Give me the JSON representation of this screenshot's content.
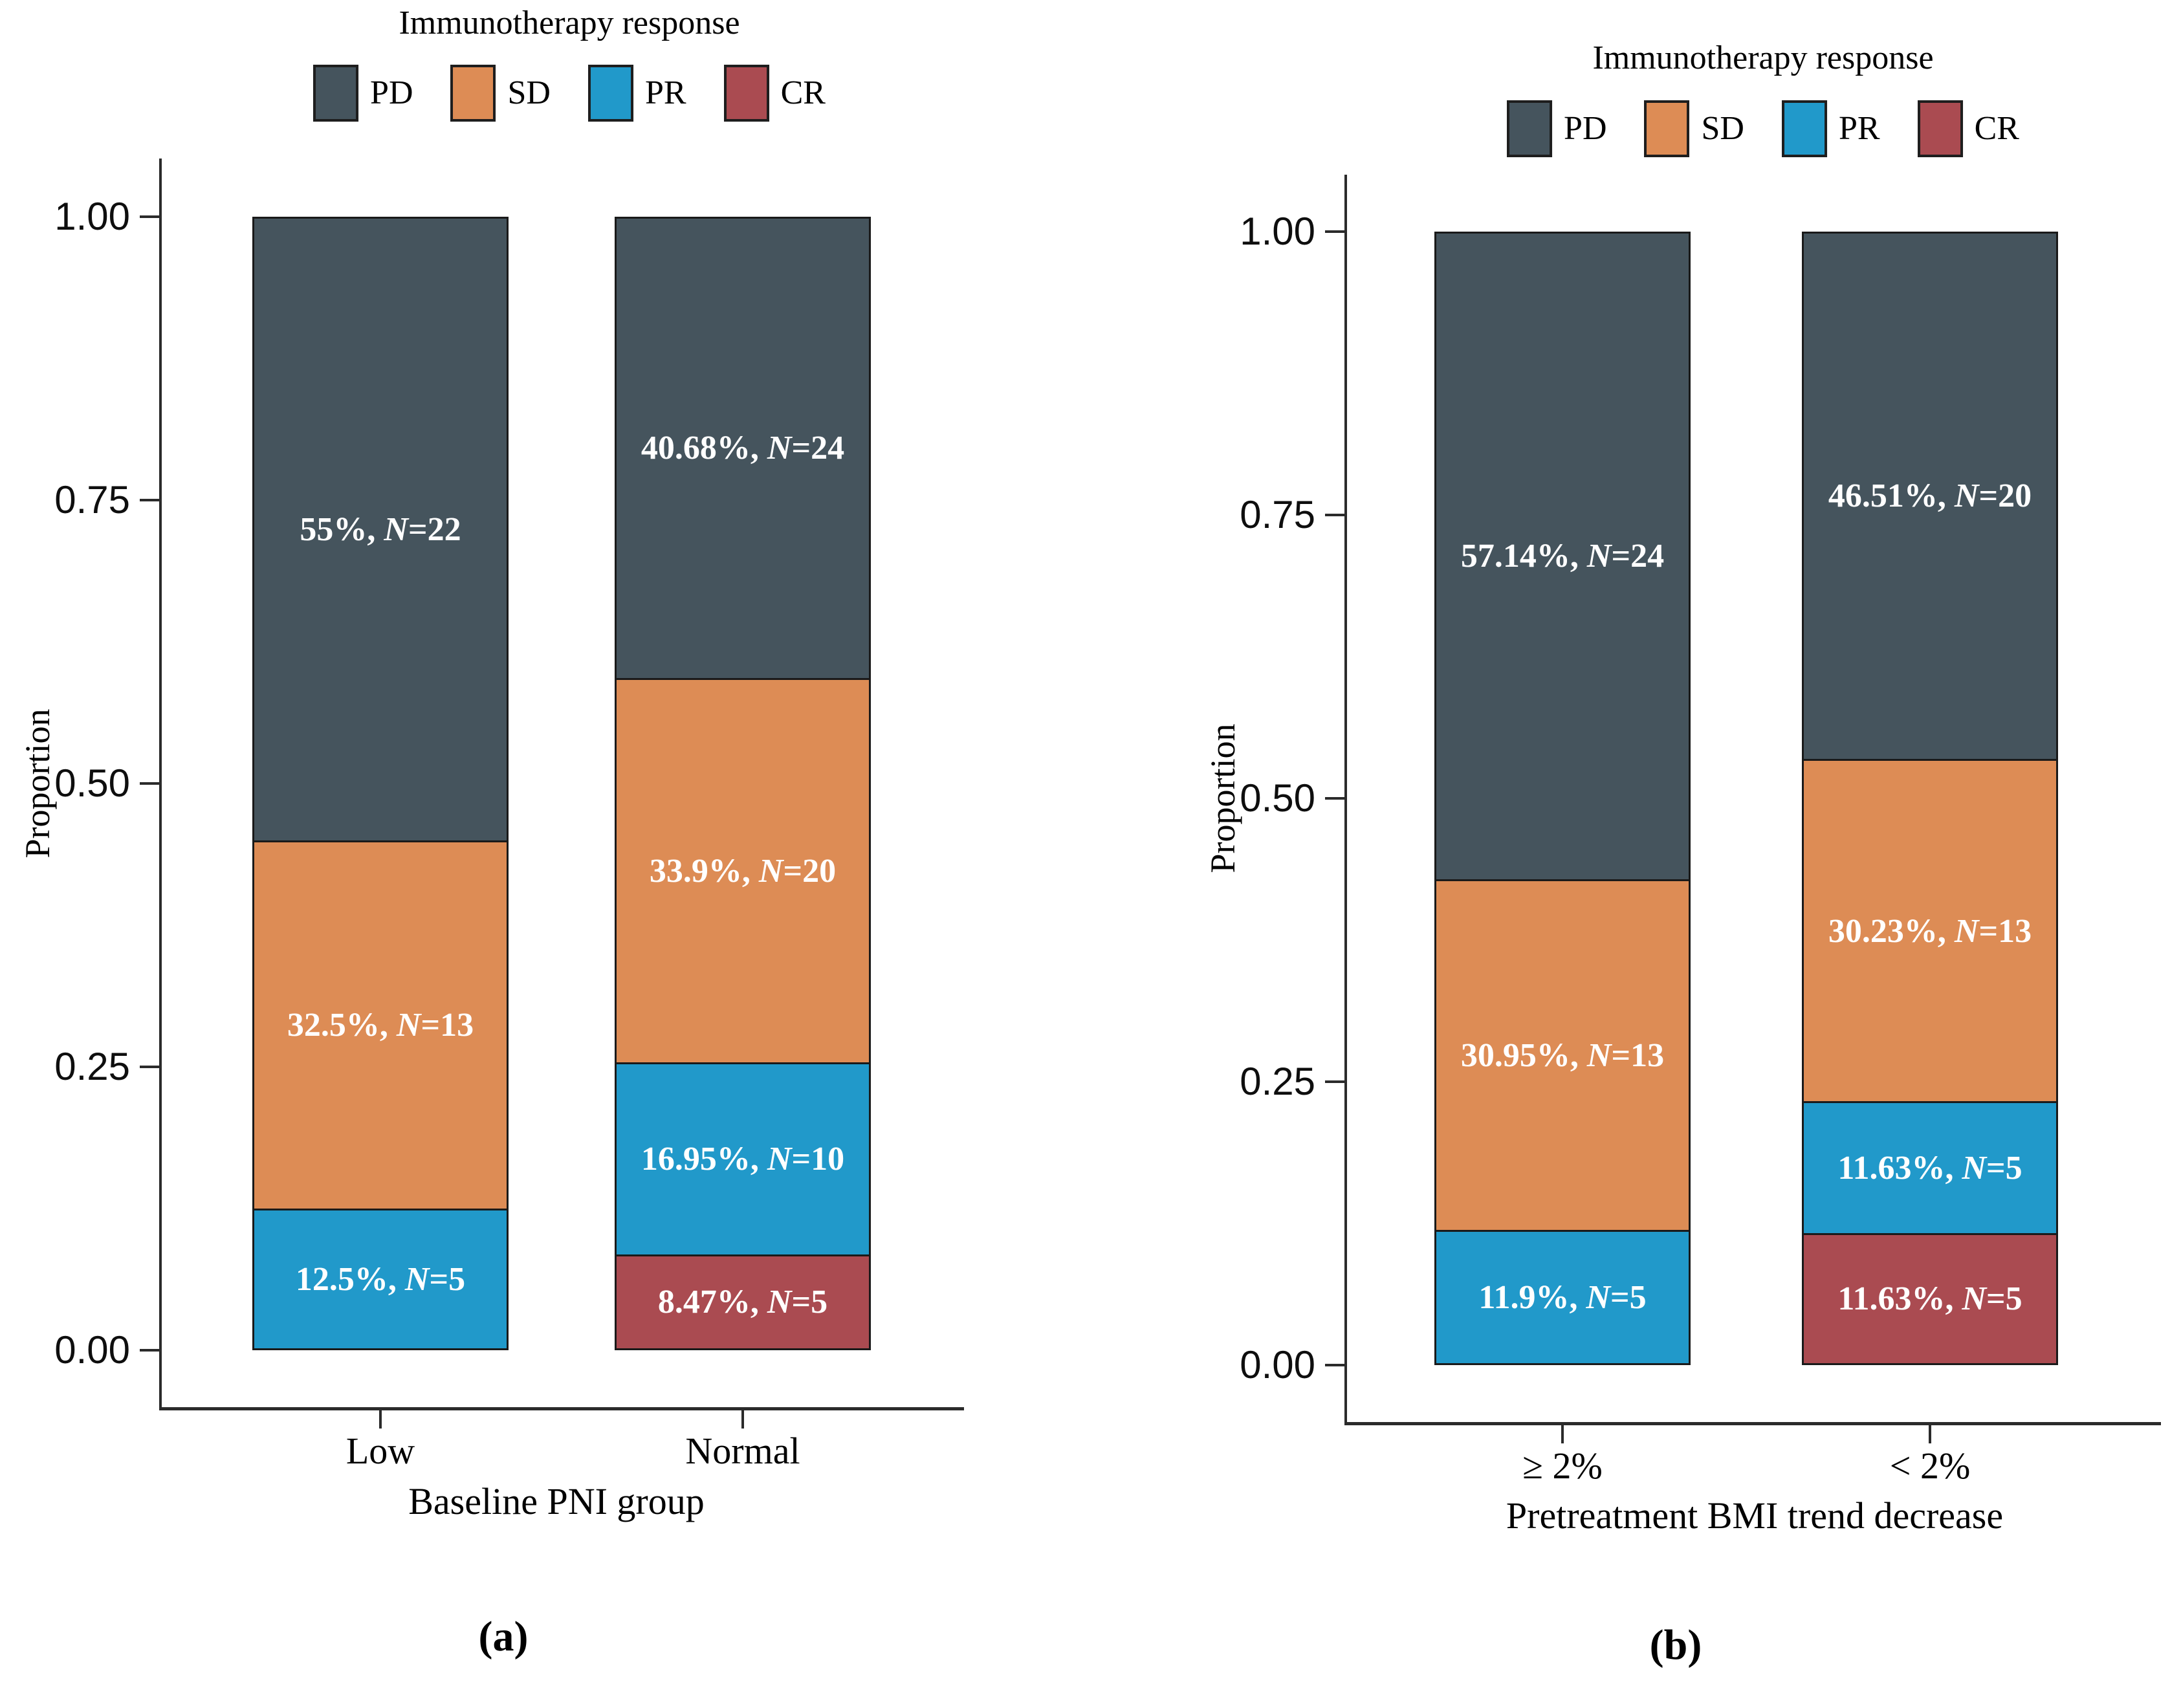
{
  "figure": {
    "legend_title": "Immunotherapy response",
    "y_tick_labels": [
      "1.00",
      "0.75",
      "0.50",
      "0.25",
      "0.00"
    ],
    "y_tick_values": [
      1.0,
      0.75,
      0.5,
      0.25,
      0.0
    ]
  },
  "colors": {
    "PD": "#45545d",
    "SD": "#dd8c55",
    "PR": "#2199ca",
    "CR": "#aa4b51",
    "axis": "#2b2b2b",
    "bar_border": "#1a1a1a",
    "bar_label_text": "#ffffff",
    "text": "#000000"
  },
  "chart_data": [
    {
      "type": "bar",
      "stacked": true,
      "panel": "a",
      "caption": "(a)",
      "legend_title": "Immunotherapy response",
      "legend_position": "top",
      "xlabel": "Baseline PNI group",
      "ylabel": "Proportion",
      "ylim": [
        0,
        1
      ],
      "yticks": [
        "1.00",
        "0.75",
        "0.50",
        "0.25",
        "0.00"
      ],
      "grid": false,
      "categories": [
        "Low",
        "Normal"
      ],
      "series": [
        {
          "name": "PD",
          "color_key": "PD",
          "values": [
            0.55,
            0.4068
          ],
          "counts": [
            22,
            24
          ],
          "labels": [
            "55%, N=22",
            "40.68%, N=24"
          ]
        },
        {
          "name": "SD",
          "color_key": "SD",
          "values": [
            0.325,
            0.339
          ],
          "counts": [
            13,
            20
          ],
          "labels": [
            "32.5%, N=13",
            "33.9%, N=20"
          ]
        },
        {
          "name": "PR",
          "color_key": "PR",
          "values": [
            0.125,
            0.1695
          ],
          "counts": [
            5,
            10
          ],
          "labels": [
            "12.5%, N=5",
            "16.95%, N=10"
          ]
        },
        {
          "name": "CR",
          "color_key": "CR",
          "values": [
            0,
            0.0847
          ],
          "counts": [
            0,
            5
          ],
          "labels": [
            null,
            "8.47%, N=5"
          ]
        }
      ]
    },
    {
      "type": "bar",
      "stacked": true,
      "panel": "b",
      "caption": "(b)",
      "legend_title": "Immunotherapy response",
      "legend_position": "top",
      "xlabel": "Pretreatment BMI trend decrease",
      "ylabel": "Proportion",
      "ylim": [
        0,
        1
      ],
      "yticks": [
        "1.00",
        "0.75",
        "0.50",
        "0.25",
        "0.00"
      ],
      "grid": false,
      "categories": [
        "≥ 2%",
        "< 2%"
      ],
      "series": [
        {
          "name": "PD",
          "color_key": "PD",
          "values": [
            0.5714,
            0.4651
          ],
          "counts": [
            24,
            20
          ],
          "labels": [
            "57.14%, N=24",
            "46.51%, N=20"
          ]
        },
        {
          "name": "SD",
          "color_key": "SD",
          "values": [
            0.3095,
            0.3023
          ],
          "counts": [
            13,
            13
          ],
          "labels": [
            "30.95%, N=13",
            "30.23%, N=13"
          ]
        },
        {
          "name": "PR",
          "color_key": "PR",
          "values": [
            0.119,
            0.1163
          ],
          "counts": [
            5,
            5
          ],
          "labels": [
            "11.9%, N=5",
            "11.63%, N=5"
          ]
        },
        {
          "name": "CR",
          "color_key": "CR",
          "values": [
            0,
            0.1163
          ],
          "counts": [
            0,
            5
          ],
          "labels": [
            null,
            "11.63%, N=5"
          ]
        }
      ]
    }
  ]
}
